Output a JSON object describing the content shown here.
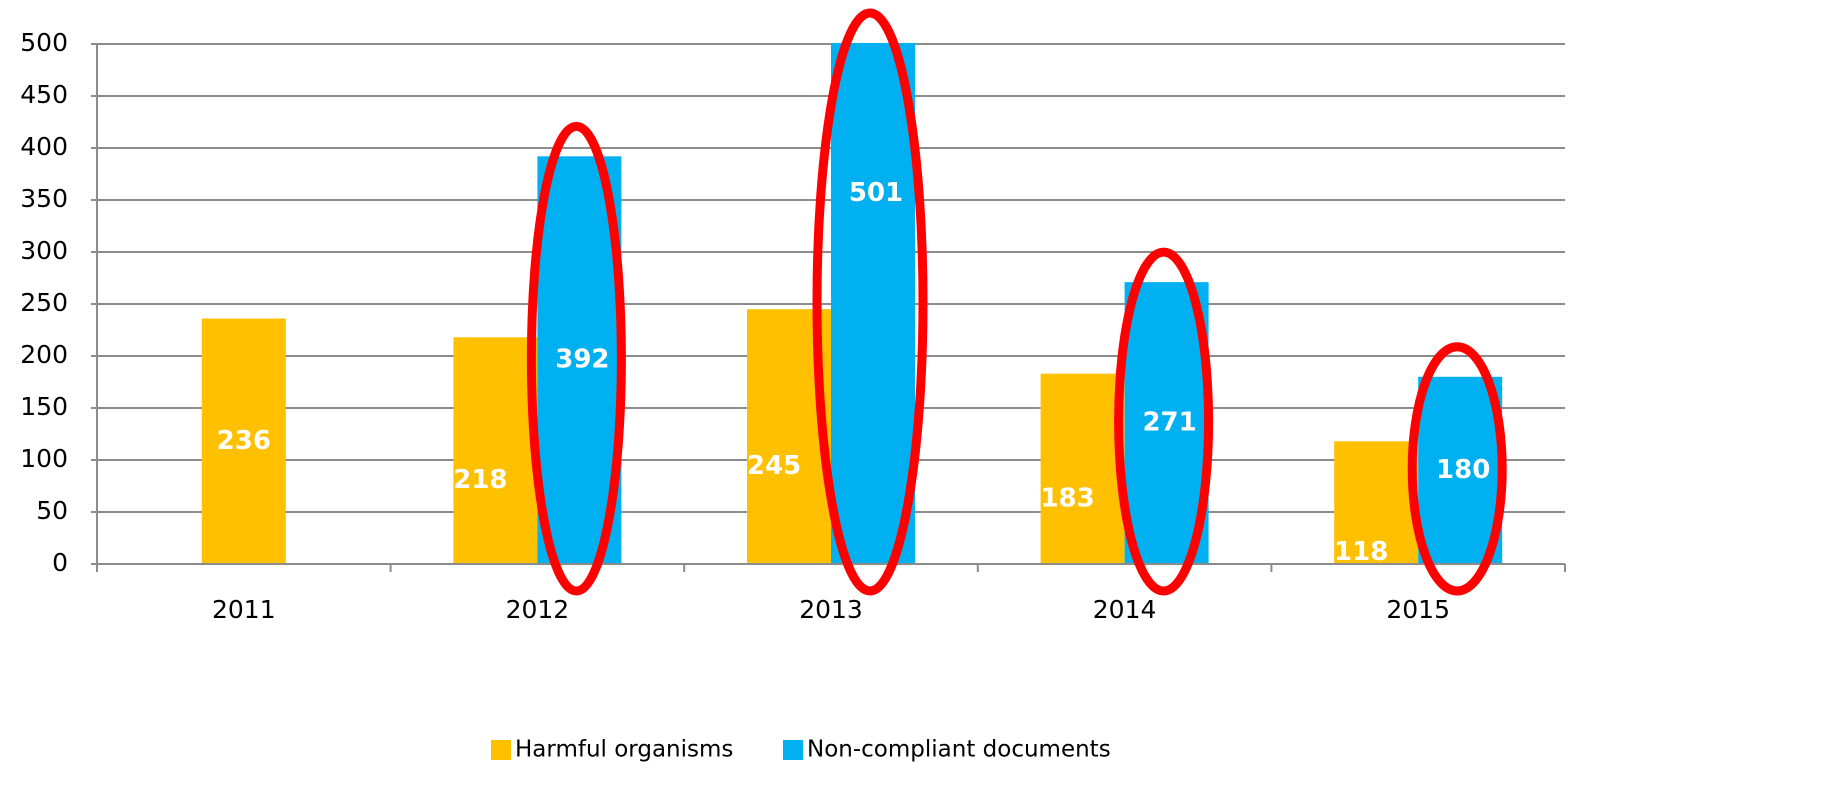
{
  "chart_data": {
    "type": "bar",
    "categories": [
      "2011",
      "2012",
      "2013",
      "2014",
      "2015"
    ],
    "series": [
      {
        "name": "Harmful organisms",
        "color": "#ffc000",
        "values": [
          236,
          218,
          245,
          183,
          118
        ],
        "labels": [
          "236",
          "218",
          "245",
          "183",
          "118"
        ]
      },
      {
        "name": "Non-compliant documents",
        "color": "#00b0f0",
        "values": [
          null,
          392,
          501,
          271,
          180
        ],
        "labels": [
          "",
          "392",
          "501",
          "271",
          "180"
        ]
      }
    ],
    "ylim": [
      0,
      500
    ],
    "yticks": [
      0,
      50,
      100,
      150,
      200,
      250,
      300,
      350,
      400,
      450,
      500
    ],
    "ytick_labels": [
      "0",
      "50",
      "100",
      "150",
      "200",
      "250",
      "300",
      "350",
      "400",
      "450",
      "500"
    ],
    "grid": true,
    "legend_position": "bottom",
    "highlight_color": "#ff0000",
    "highlighted_series": "Non-compliant documents",
    "highlighted_categories": [
      "2012",
      "2013",
      "2014",
      "2015"
    ]
  }
}
